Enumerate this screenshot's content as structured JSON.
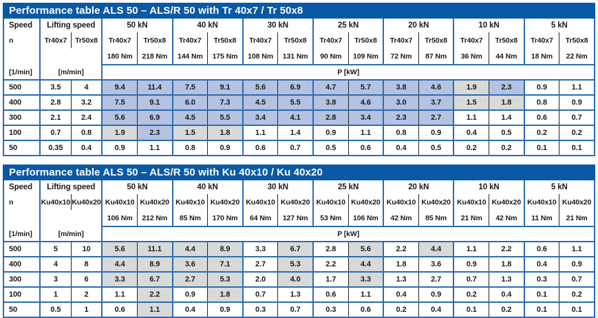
{
  "colors": {
    "title_bar": "#0a59a4",
    "table_border_blue": "#2a6db2",
    "highlight_blue": "#b5c2e2",
    "highlight_gray": "#d9d9d9",
    "title_text": "#ffffff",
    "text": "#1a1a1a"
  },
  "tables": [
    {
      "title": "Performance table ALS 50 – ALS/R 50 with Tr 40x7 / Tr 50x8",
      "speed_label": "Speed",
      "speed_sub": "n",
      "speed_unit": "[1/min]",
      "lifting_label": "Lifting speed",
      "lifting_unit": "[m/min]",
      "power_unit": "P [kW]",
      "screw_a": "Tr40x7",
      "screw_b": "Tr50x8",
      "groups": [
        {
          "load": "50 kN",
          "torque_a": "180 Nm",
          "torque_b": "218 Nm"
        },
        {
          "load": "40 kN",
          "torque_a": "144 Nm",
          "torque_b": "175 Nm"
        },
        {
          "load": "30 kN",
          "torque_a": "108 Nm",
          "torque_b": "131 Nm"
        },
        {
          "load": "25 kN",
          "torque_a": "90 Nm",
          "torque_b": "109 Nm"
        },
        {
          "load": "20 kN",
          "torque_a": "72 Nm",
          "torque_b": "87 Nm"
        },
        {
          "load": "10 kN",
          "torque_a": "36 Nm",
          "torque_b": "44 Nm"
        },
        {
          "load": "5 kN",
          "torque_a": "18 Nm",
          "torque_b": "22 Nm"
        }
      ],
      "rows": [
        {
          "speed": "500",
          "lift_a": "3.5",
          "lift_b": "4",
          "values": [
            "9.4",
            "11.4",
            "7.5",
            "9.1",
            "5.6",
            "6.9",
            "4.7",
            "5.7",
            "3.8",
            "4.6",
            "1.9",
            "2.3",
            "0.9",
            "1.1"
          ],
          "hl": [
            "b",
            "b",
            "b",
            "b",
            "b",
            "b",
            "b",
            "b",
            "b",
            "b",
            "g",
            "b",
            "w",
            "w"
          ]
        },
        {
          "speed": "400",
          "lift_a": "2.8",
          "lift_b": "3.2",
          "values": [
            "7.5",
            "9.1",
            "6.0",
            "7.3",
            "4.5",
            "5.5",
            "3.8",
            "4.6",
            "3.0",
            "3.7",
            "1.5",
            "1.8",
            "0.8",
            "0.9"
          ],
          "hl": [
            "b",
            "b",
            "b",
            "b",
            "b",
            "b",
            "b",
            "b",
            "b",
            "b",
            "g",
            "g",
            "w",
            "w"
          ]
        },
        {
          "speed": "300",
          "lift_a": "2.1",
          "lift_b": "2.4",
          "values": [
            "5.6",
            "6.9",
            "4.5",
            "5.5",
            "3.4",
            "4.1",
            "2.8",
            "3.4",
            "2.3",
            "2.7",
            "1.1",
            "1.4",
            "0.6",
            "0.7"
          ],
          "hl": [
            "b",
            "b",
            "b",
            "b",
            "b",
            "b",
            "b",
            "b",
            "b",
            "b",
            "w",
            "w",
            "w",
            "w"
          ]
        },
        {
          "speed": "100",
          "lift_a": "0.7",
          "lift_b": "0.8",
          "values": [
            "1.9",
            "2.3",
            "1.5",
            "1.8",
            "1.1",
            "1.4",
            "0.9",
            "1.1",
            "0.8",
            "0.9",
            "0.4",
            "0.5",
            "0.2",
            "0.2"
          ],
          "hl": [
            "g",
            "b",
            "g",
            "g",
            "w",
            "w",
            "w",
            "w",
            "w",
            "w",
            "w",
            "w",
            "w",
            "w"
          ]
        },
        {
          "speed": "50",
          "lift_a": "0.35",
          "lift_b": "0.4",
          "values": [
            "0.9",
            "1.1",
            "0.8",
            "0.9",
            "0.6",
            "0.7",
            "0.5",
            "0.6",
            "0.4",
            "0.5",
            "0.2",
            "0.2",
            "0.1",
            "0.1"
          ],
          "hl": [
            "w",
            "w",
            "w",
            "w",
            "w",
            "w",
            "w",
            "w",
            "w",
            "w",
            "w",
            "w",
            "w",
            "w"
          ]
        }
      ]
    },
    {
      "title": "Performance table ALS 50 – ALS/R 50 with Ku 40x10 / Ku 40x20",
      "speed_label": "Speed",
      "speed_sub": "n",
      "speed_unit": "[1/min]",
      "lifting_label": "Lifting speed",
      "lifting_unit": "[m/min]",
      "power_unit": "P [kW]",
      "screw_a": "Ku40x10",
      "screw_b": "Ku40x20",
      "groups": [
        {
          "load": "50 kN",
          "torque_a": "106 Nm",
          "torque_b": "212 Nm"
        },
        {
          "load": "40 kN",
          "torque_a": "85 Nm",
          "torque_b": "170 Nm"
        },
        {
          "load": "30 kN",
          "torque_a": "64 Nm",
          "torque_b": "127 Nm"
        },
        {
          "load": "25 kN",
          "torque_a": "53 Nm",
          "torque_b": "106 Nm"
        },
        {
          "load": "20 kN",
          "torque_a": "42 Nm",
          "torque_b": "85 Nm"
        },
        {
          "load": "10 kN",
          "torque_a": "21 Nm",
          "torque_b": "42 Nm"
        },
        {
          "load": "5 kN",
          "torque_a": "11 Nm",
          "torque_b": "21 Nm"
        }
      ],
      "rows": [
        {
          "speed": "500",
          "lift_a": "5",
          "lift_b": "10",
          "values": [
            "5.6",
            "11.1",
            "4.4",
            "8.9",
            "3.3",
            "6.7",
            "2.8",
            "5.6",
            "2.2",
            "4.4",
            "1.1",
            "2.2",
            "0.6",
            "1.1"
          ],
          "hl": [
            "g",
            "g",
            "g",
            "g",
            "w",
            "g",
            "w",
            "g",
            "w",
            "g",
            "w",
            "w",
            "w",
            "w"
          ]
        },
        {
          "speed": "400",
          "lift_a": "4",
          "lift_b": "8",
          "values": [
            "4.4",
            "8.9",
            "3.6",
            "7.1",
            "2.7",
            "5.3",
            "2.2",
            "4.4",
            "1.8",
            "3.6",
            "0.9",
            "1.8",
            "0.4",
            "0.9"
          ],
          "hl": [
            "g",
            "g",
            "g",
            "g",
            "w",
            "g",
            "w",
            "g",
            "w",
            "w",
            "w",
            "w",
            "w",
            "w"
          ]
        },
        {
          "speed": "300",
          "lift_a": "3",
          "lift_b": "6",
          "values": [
            "3.3",
            "6.7",
            "2.7",
            "5.3",
            "2.0",
            "4.0",
            "1.7",
            "3.3",
            "1.3",
            "2.7",
            "0.7",
            "1.3",
            "0.3",
            "0.7"
          ],
          "hl": [
            "g",
            "g",
            "g",
            "g",
            "w",
            "g",
            "w",
            "g",
            "w",
            "w",
            "w",
            "w",
            "w",
            "w"
          ]
        },
        {
          "speed": "100",
          "lift_a": "1",
          "lift_b": "2",
          "values": [
            "1.1",
            "2.2",
            "0.9",
            "1.8",
            "0.7",
            "1.3",
            "0.6",
            "1.1",
            "0.4",
            "0.9",
            "0.2",
            "0.4",
            "0.1",
            "0.2"
          ],
          "hl": [
            "w",
            "g",
            "w",
            "g",
            "w",
            "w",
            "w",
            "w",
            "w",
            "w",
            "w",
            "w",
            "w",
            "w"
          ]
        },
        {
          "speed": "50",
          "lift_a": "0.5",
          "lift_b": "1",
          "values": [
            "0.6",
            "1.1",
            "0.4",
            "0.9",
            "0.3",
            "0.7",
            "0.3",
            "0.6",
            "0.2",
            "0.4",
            "0.1",
            "0.2",
            "0.1",
            "0.1"
          ],
          "hl": [
            "w",
            "g",
            "w",
            "w",
            "w",
            "w",
            "w",
            "w",
            "w",
            "w",
            "w",
            "w",
            "w",
            "w"
          ]
        }
      ]
    }
  ]
}
